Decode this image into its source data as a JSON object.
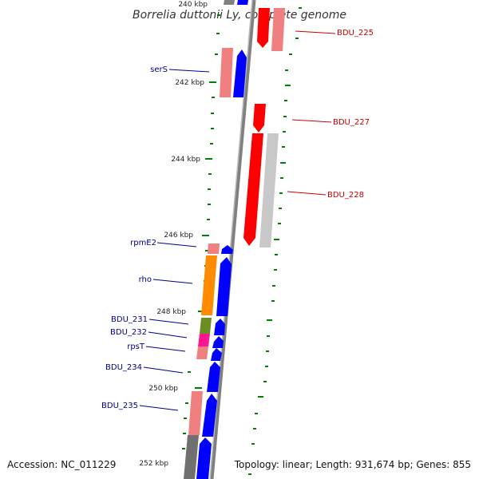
{
  "title": "Borrelia duttonii Ly, complete genome",
  "footer": {
    "accession": "Accession: NC_011229",
    "topology": "Topology: linear; Length: 931,674 bp; Genes: 855"
  },
  "scale_labels": [
    "240 kbp",
    "242 kbp",
    "244 kbp",
    "246 kbp",
    "248 kbp",
    "250 kbp",
    "252 kbp"
  ],
  "gene_labels_left": [
    "serS",
    "rpmE2",
    "rho",
    "BDU_231",
    "BDU_232",
    "rpsT",
    "BDU_234",
    "BDU_235"
  ],
  "gene_labels_right": [
    "BDU_225",
    "BDU_227",
    "BDU_228"
  ],
  "colors": {
    "forward_cds": "#0000ff",
    "reverse_cds": "#ff0000",
    "forward_row_light": "#f08080",
    "reverse_row_light": "#c8c8c8",
    "rho_gene": "#ff8c00",
    "bdu231_gene": "#6b8e23",
    "bdu232_gene": "#ff1493",
    "backbone": "#808080",
    "tick": "#008000",
    "label_left": "#00008b",
    "label_right": "#cc0000"
  }
}
